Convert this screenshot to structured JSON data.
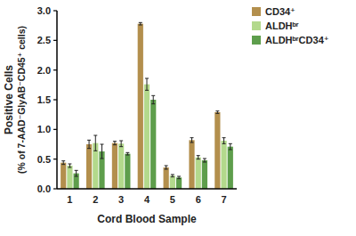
{
  "chart_data": {
    "type": "bar",
    "x_label": "Cord Blood Sample",
    "y_label": [
      "Positive Cells",
      "(% of 7-AAD⁻GlyAB⁻CD45⁺ cells)"
    ],
    "categories": [
      "1",
      "2",
      "3",
      "4",
      "5",
      "6",
      "7"
    ],
    "series": [
      {
        "name": "CD34⁺",
        "color": "#b38f4d",
        "values": [
          0.44,
          0.75,
          0.77,
          2.78,
          0.36,
          0.82,
          1.29
        ],
        "errors": [
          0.03,
          0.07,
          0.03,
          0.02,
          0.03,
          0.04,
          0.02
        ]
      },
      {
        "name": "ALDHᵇʳ",
        "color": "#b3d98c",
        "values": [
          0.39,
          0.77,
          0.76,
          1.76,
          0.22,
          0.53,
          0.81
        ],
        "errors": [
          0.03,
          0.13,
          0.05,
          0.1,
          0.02,
          0.03,
          0.05
        ]
      },
      {
        "name": "ALDHᵇʳCD34⁺",
        "color": "#5e9e4c",
        "values": [
          0.26,
          0.63,
          0.59,
          1.5,
          0.19,
          0.48,
          0.71
        ],
        "errors": [
          0.05,
          0.12,
          0.02,
          0.07,
          0.02,
          0.03,
          0.05
        ]
      }
    ],
    "ylim": [
      0,
      3
    ],
    "yticks": [
      {
        "value": 0,
        "label": "0.0"
      },
      {
        "value": 0.5,
        "label": "0.5"
      },
      {
        "value": 1,
        "label": "1.0"
      },
      {
        "value": 1.5,
        "label": "1.5"
      },
      {
        "value": 2,
        "label": "2.0"
      },
      {
        "value": 2.5,
        "label": "2.5"
      },
      {
        "value": 3,
        "label": "3.0"
      }
    ],
    "grid": false,
    "legend": "upper right"
  }
}
